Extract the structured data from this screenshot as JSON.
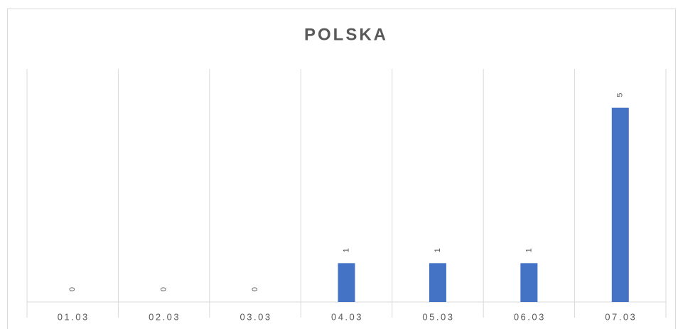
{
  "chart_data": {
    "type": "bar",
    "title": "POLSKA",
    "categories": [
      "01.03",
      "02.03",
      "03.03",
      "04.03",
      "05.03",
      "06.03",
      "07.03"
    ],
    "values": [
      0,
      0,
      0,
      1,
      1,
      1,
      5
    ],
    "color": "#4472c4"
  }
}
